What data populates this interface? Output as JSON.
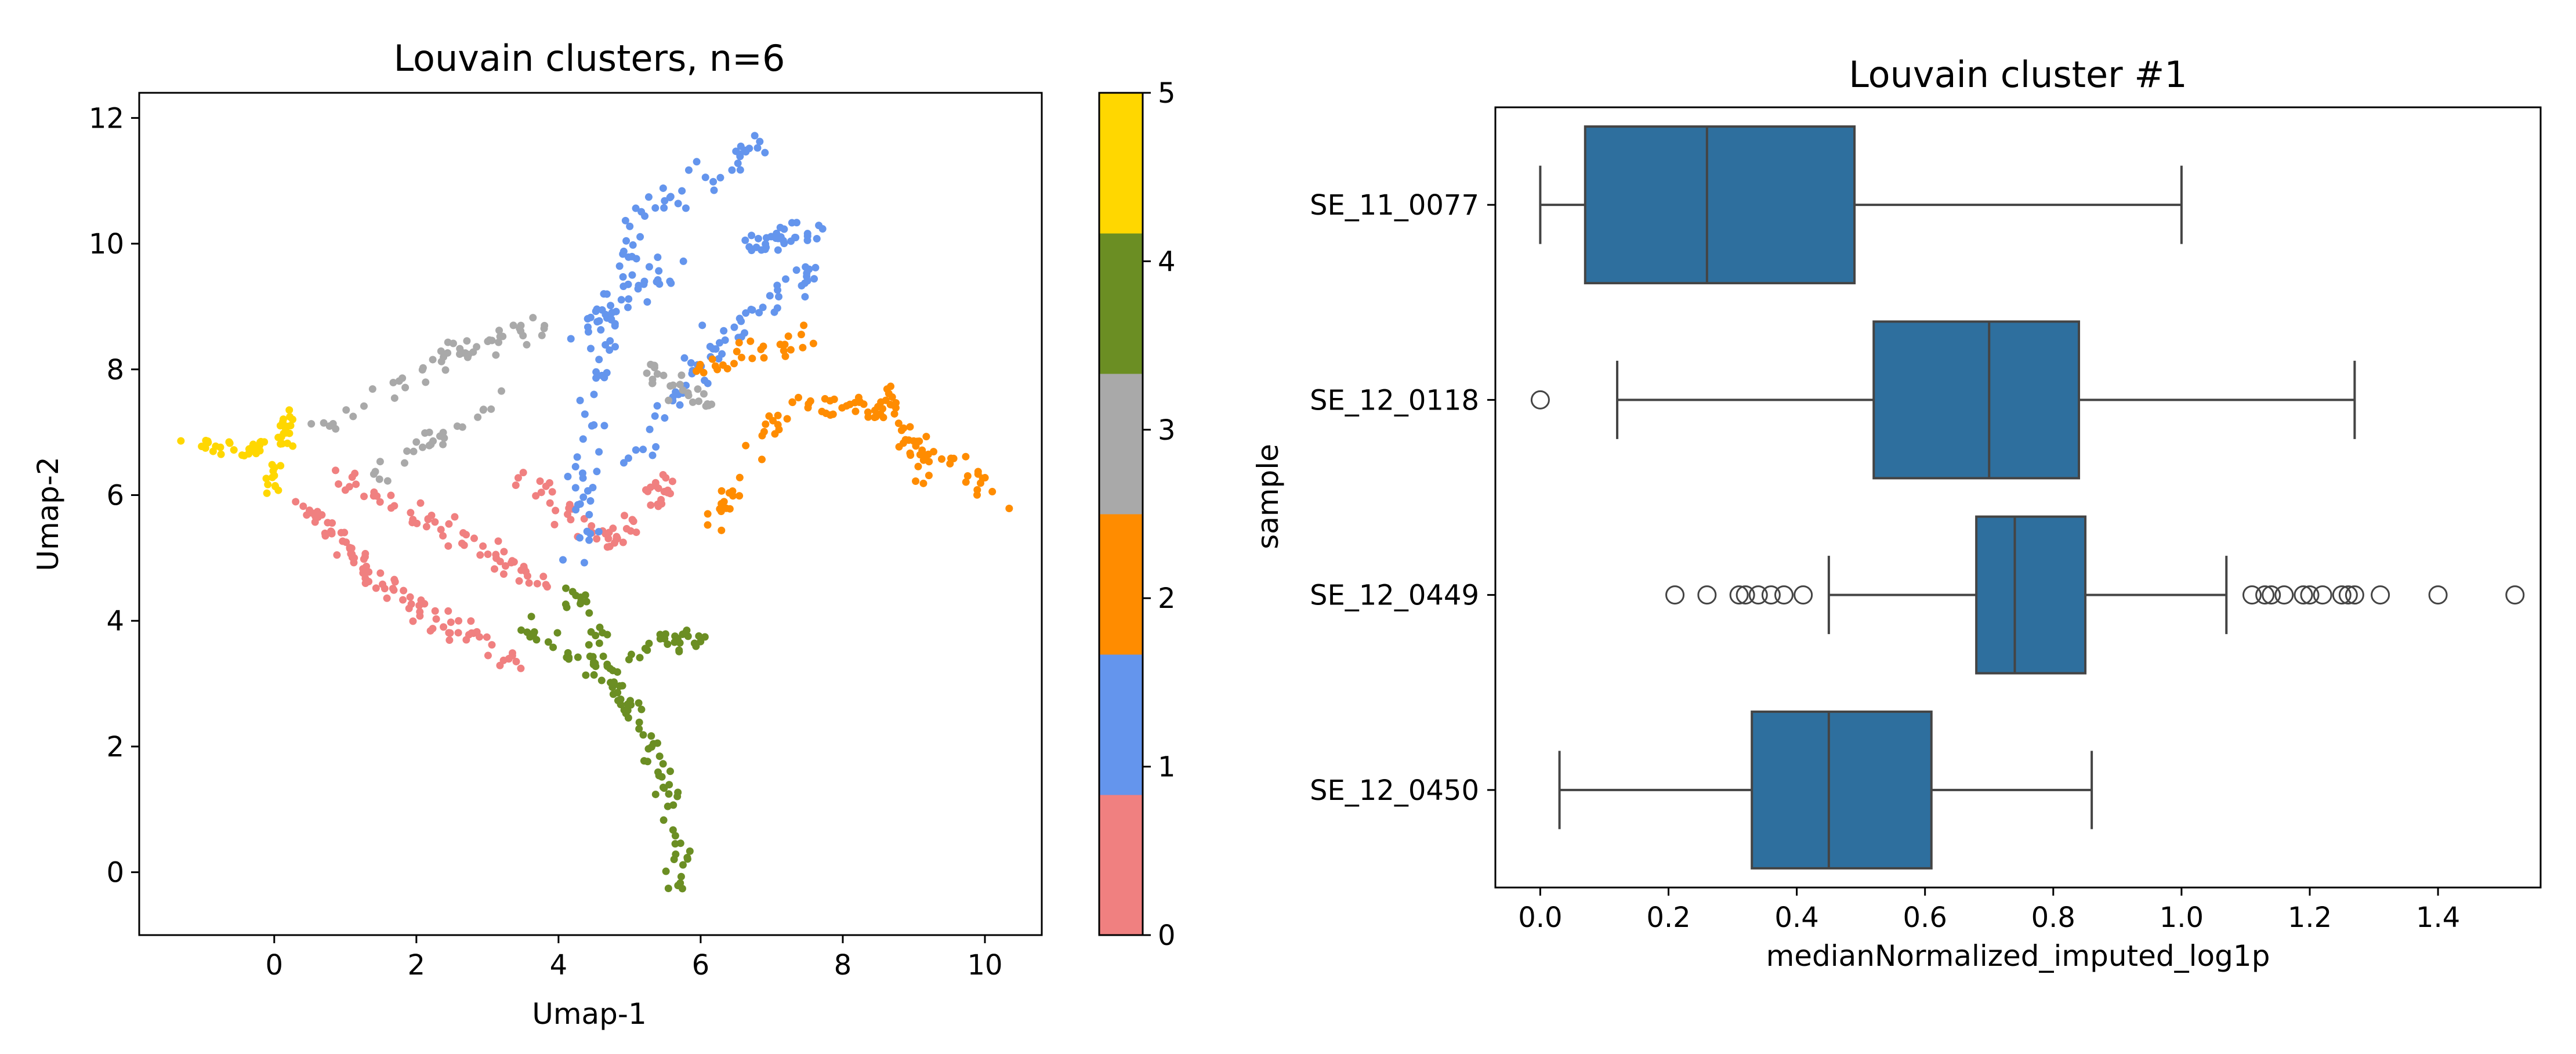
{
  "chart_data": [
    {
      "type": "scatter",
      "title": "Louvain clusters, n=6",
      "xlabel": "Umap-1",
      "ylabel": "Umap-2",
      "xlim": [
        -1.9,
        10.8
      ],
      "ylim": [
        -1.0,
        12.4
      ],
      "xticks": [
        0,
        2,
        4,
        6,
        8,
        10
      ],
      "yticks": [
        0,
        2,
        4,
        6,
        8,
        10,
        12
      ],
      "grid": false,
      "colorbar": {
        "ticks": [
          "0",
          "1",
          "2",
          "3",
          "4",
          "5"
        ],
        "colors": [
          "#f08080",
          "#6495ed",
          "#ff8c00",
          "#a9a9a9",
          "#6b8e23",
          "#ffd700"
        ]
      },
      "clusters": [
        {
          "label": "0",
          "color": "#f08080",
          "segments": [
            [
              0.4,
              5.9,
              1.2,
              4.9
            ],
            [
              1.2,
              4.9,
              2.2,
              4.0
            ],
            [
              2.2,
              4.0,
              3.5,
              3.3
            ],
            [
              1.0,
              6.3,
              2.5,
              5.4
            ],
            [
              2.5,
              5.4,
              3.8,
              4.6
            ],
            [
              3.5,
              6.3,
              4.8,
              5.2
            ],
            [
              4.8,
              5.2,
              5.6,
              6.3
            ]
          ],
          "spread": 0.3,
          "per_segment": 30
        },
        {
          "label": "1",
          "color": "#6495ed",
          "segments": [
            [
              4.3,
              5.0,
              4.5,
              8.0
            ],
            [
              4.5,
              8.0,
              5.1,
              10.5
            ],
            [
              5.1,
              10.5,
              6.9,
              11.6
            ],
            [
              5.0,
              6.6,
              6.2,
              8.4
            ],
            [
              6.2,
              8.4,
              7.6,
              9.6
            ],
            [
              3.9,
              8.4,
              5.6,
              9.6
            ],
            [
              6.6,
              10.0,
              7.6,
              10.2
            ]
          ],
          "spread": 0.35,
          "per_segment": 32
        },
        {
          "label": "2",
          "color": "#ff8c00",
          "segments": [
            [
              6.1,
              5.5,
              7.3,
              7.5
            ],
            [
              7.3,
              7.5,
              8.6,
              7.3
            ],
            [
              8.6,
              7.3,
              10.2,
              5.9
            ],
            [
              8.5,
              7.8,
              9.3,
              6.1
            ],
            [
              6.0,
              8.0,
              7.5,
              8.5
            ]
          ],
          "spread": 0.3,
          "per_segment": 28
        },
        {
          "label": "3",
          "color": "#a9a9a9",
          "segments": [
            [
              0.6,
              7.0,
              2.6,
              8.3
            ],
            [
              2.6,
              8.3,
              3.8,
              8.7
            ],
            [
              1.4,
              6.2,
              3.2,
              7.6
            ],
            [
              5.2,
              8.0,
              6.2,
              7.4
            ]
          ],
          "spread": 0.3,
          "per_segment": 26
        },
        {
          "label": "4",
          "color": "#6b8e23",
          "segments": [
            [
              3.4,
              4.0,
              4.8,
              3.0
            ],
            [
              4.8,
              3.0,
              5.5,
              1.6
            ],
            [
              5.5,
              1.6,
              5.7,
              -0.3
            ],
            [
              4.2,
              4.5,
              5.0,
              2.6
            ],
            [
              5.0,
              3.5,
              6.0,
              3.8
            ]
          ],
          "spread": 0.28,
          "per_segment": 28
        },
        {
          "label": "5",
          "color": "#ffd700",
          "segments": [
            [
              -1.3,
              6.8,
              -0.3,
              6.7
            ],
            [
              -0.3,
              6.7,
              0.3,
              7.3
            ],
            [
              -0.1,
              6.0,
              0.2,
              7.0
            ]
          ],
          "spread": 0.18,
          "per_segment": 20
        }
      ]
    },
    {
      "type": "box",
      "title": "Louvain cluster #1",
      "xlabel": "medianNormalized_imputed_log1p",
      "ylabel": "sample",
      "xlim": [
        -0.07,
        1.56
      ],
      "xticks": [
        "0.0",
        "0.2",
        "0.4",
        "0.6",
        "0.8",
        "1.0",
        "1.2",
        "1.4"
      ],
      "grid": false,
      "box_color": "#2e6f9e",
      "categories": [
        "SE_11_0077",
        "SE_12_0118",
        "SE_12_0449",
        "SE_12_0450"
      ],
      "boxes": [
        {
          "sample": "SE_11_0077",
          "whislo": 0.0,
          "q1": 0.07,
          "median": 0.26,
          "q3": 0.49,
          "whishi": 1.0,
          "fliers": []
        },
        {
          "sample": "SE_12_0118",
          "whislo": 0.12,
          "q1": 0.52,
          "median": 0.7,
          "q3": 0.84,
          "whishi": 1.27,
          "fliers": [
            0.0
          ]
        },
        {
          "sample": "SE_12_0449",
          "whislo": 0.45,
          "q1": 0.68,
          "median": 0.74,
          "q3": 0.85,
          "whishi": 1.07,
          "fliers": [
            0.21,
            0.26,
            0.31,
            0.32,
            0.34,
            0.36,
            0.38,
            0.41,
            1.11,
            1.13,
            1.14,
            1.16,
            1.19,
            1.2,
            1.22,
            1.25,
            1.26,
            1.27,
            1.31,
            1.4,
            1.52
          ]
        },
        {
          "sample": "SE_12_0450",
          "whislo": 0.03,
          "q1": 0.33,
          "median": 0.45,
          "q3": 0.61,
          "whishi": 0.86,
          "fliers": []
        }
      ]
    }
  ]
}
